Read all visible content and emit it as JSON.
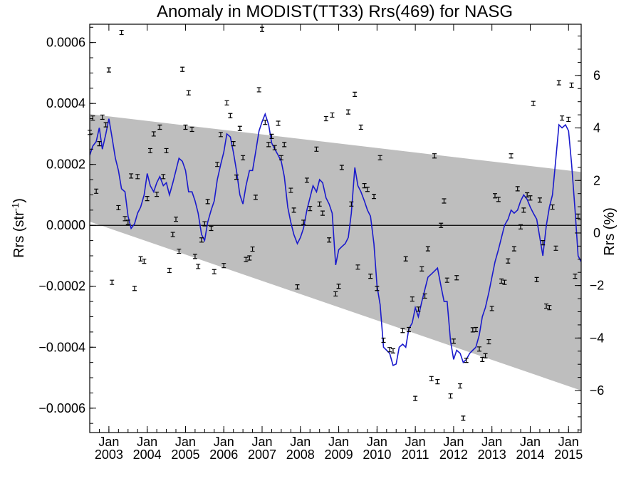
{
  "chart_data": {
    "type": "scatter",
    "title": "Anomaly in MODIST(TT33) Rrs(469) for NASG",
    "ylabel_main": "Rrs (str",
    "ylabel_sup": "-1",
    "ylabel_close": ")",
    "y2label": "Rrs (%)",
    "ylim": [
      -0.00068,
      0.00066
    ],
    "y2lim": [
      -7.6,
      7.95
    ],
    "xlim": [
      2002.5,
      2015.33
    ],
    "grid": false,
    "yticks": [
      {
        "value": -0.0006,
        "label": "−0.0006"
      },
      {
        "value": -0.0004,
        "label": "−0.0004"
      },
      {
        "value": -0.0002,
        "label": "−0.0002"
      },
      {
        "value": 0.0,
        "label": "0.0000"
      },
      {
        "value": 0.0002,
        "label": "0.0002"
      },
      {
        "value": 0.0004,
        "label": "0.0004"
      },
      {
        "value": 0.0006,
        "label": "0.0006"
      }
    ],
    "y2ticks": [
      {
        "value": -6,
        "label": "−6"
      },
      {
        "value": -4,
        "label": "−4"
      },
      {
        "value": -2,
        "label": "−2"
      },
      {
        "value": 0,
        "label": "0"
      },
      {
        "value": 2,
        "label": "2"
      },
      {
        "value": 4,
        "label": "4"
      },
      {
        "value": 6,
        "label": "6"
      }
    ],
    "xticks": [
      {
        "value": 2003,
        "month": "Jan",
        "year": "2003"
      },
      {
        "value": 2004,
        "month": "Jan",
        "year": "2004"
      },
      {
        "value": 2005,
        "month": "Jan",
        "year": "2005"
      },
      {
        "value": 2006,
        "month": "Jan",
        "year": "2006"
      },
      {
        "value": 2007,
        "month": "Jan",
        "year": "2007"
      },
      {
        "value": 2008,
        "month": "Jan",
        "year": "2008"
      },
      {
        "value": 2009,
        "month": "Jan",
        "year": "2009"
      },
      {
        "value": 2010,
        "month": "Jan",
        "year": "2010"
      },
      {
        "value": 2011,
        "month": "Jan",
        "year": "2011"
      },
      {
        "value": 2012,
        "month": "Jan",
        "year": "2012"
      },
      {
        "value": 2013,
        "month": "Jan",
        "year": "2013"
      },
      {
        "value": 2014,
        "month": "Jan",
        "year": "2014"
      },
      {
        "value": 2015,
        "month": "Jan",
        "year": "2015"
      }
    ],
    "band": {
      "start_x": 2002.5,
      "end_x": 2015.33,
      "upper_start": 0.000365,
      "upper_end": 0.000175,
      "lower_start": 1.2e-05,
      "lower_end": -0.000542,
      "color": "#bebebe"
    },
    "zero_line": 0.0,
    "colors": {
      "smoothed": "#1a1acc",
      "points": "#000000",
      "band": "#bebebe"
    },
    "points": [
      [
        2002.5,
        0.000305
      ],
      [
        2002.58,
        0.000352
      ],
      [
        2002.67,
        0.000112
      ],
      [
        2002.75,
        0.000268
      ],
      [
        2002.83,
        0.000355
      ],
      [
        2002.92,
        0.00033
      ],
      [
        2003.0,
        0.00051
      ],
      [
        2003.08,
        -0.000187
      ],
      [
        2003.25,
        5.8e-05
      ],
      [
        2003.33,
        0.000633
      ],
      [
        2003.42,
        2.2e-05
      ],
      [
        2003.5,
        1e-05
      ],
      [
        2003.58,
        0.000162
      ],
      [
        2003.67,
        -0.000207
      ],
      [
        2003.75,
        0.00016
      ],
      [
        2003.83,
        -0.00011
      ],
      [
        2003.92,
        -0.000118
      ],
      [
        2004.0,
        8.8e-05
      ],
      [
        2004.08,
        0.000245
      ],
      [
        2004.17,
        0.0003
      ],
      [
        2004.25,
        0.000102
      ],
      [
        2004.33,
        0.000322
      ],
      [
        2004.42,
        0.00016
      ],
      [
        2004.5,
        0.000245
      ],
      [
        2004.58,
        -0.000148
      ],
      [
        2004.67,
        -3e-05
      ],
      [
        2004.75,
        2e-05
      ],
      [
        2004.83,
        -8.5e-05
      ],
      [
        2004.92,
        0.000512
      ],
      [
        2005.0,
        0.000322
      ],
      [
        2005.08,
        0.000435
      ],
      [
        2005.17,
        0.000315
      ],
      [
        2005.25,
        -0.000102
      ],
      [
        2005.33,
        -0.000135
      ],
      [
        2005.42,
        -4.8e-05
      ],
      [
        2005.5,
        5e-06
      ],
      [
        2005.58,
        7.8e-05
      ],
      [
        2005.67,
        -1e-05
      ],
      [
        2005.75,
        -0.000152
      ],
      [
        2005.83,
        0.0002
      ],
      [
        2005.92,
        0.000298
      ],
      [
        2006.0,
        -0.000132
      ],
      [
        2006.08,
        0.000402
      ],
      [
        2006.17,
        0.00036
      ],
      [
        2006.25,
        0.000268
      ],
      [
        2006.33,
        0.000158
      ],
      [
        2006.42,
        0.000318
      ],
      [
        2006.5,
        0.000222
      ],
      [
        2006.58,
        -0.000112
      ],
      [
        2006.67,
        -0.000107
      ],
      [
        2006.75,
        -7.8e-05
      ],
      [
        2006.83,
        9.2e-05
      ],
      [
        2006.92,
        0.000445
      ],
      [
        2007.0,
        0.000643
      ],
      [
        2007.08,
        0.000338
      ],
      [
        2007.17,
        0.000265
      ],
      [
        2007.25,
        0.000292
      ],
      [
        2007.33,
        0.000255
      ],
      [
        2007.42,
        0.000335
      ],
      [
        2007.5,
        0.000222
      ],
      [
        2007.58,
        0.000265
      ],
      [
        2007.75,
        0.000115
      ],
      [
        2007.83,
        5e-05
      ],
      [
        2007.92,
        -0.000202
      ],
      [
        2008.08,
        1e-05
      ],
      [
        2008.17,
        0.000148
      ],
      [
        2008.25,
        5.5e-05
      ],
      [
        2008.42,
        0.00025
      ],
      [
        2008.5,
        7e-05
      ],
      [
        2008.58,
        4e-05
      ],
      [
        2008.67,
        0.00035
      ],
      [
        2008.75,
        -4.8e-05
      ],
      [
        2008.83,
        0.000362
      ],
      [
        2008.92,
        -0.000225
      ],
      [
        2009.0,
        -0.0002
      ],
      [
        2009.08,
        0.00019
      ],
      [
        2009.25,
        0.000372
      ],
      [
        2009.33,
        7e-05
      ],
      [
        2009.42,
        0.00043
      ],
      [
        2009.5,
        -0.000137
      ],
      [
        2009.58,
        0.000322
      ],
      [
        2009.67,
        0.00013
      ],
      [
        2009.75,
        0.000118
      ],
      [
        2009.83,
        -0.000167
      ],
      [
        2009.92,
        9.5e-05
      ],
      [
        2010.0,
        -0.000207
      ],
      [
        2010.08,
        0.000222
      ],
      [
        2010.17,
        -0.000377
      ],
      [
        2010.33,
        -0.000408
      ],
      [
        2010.42,
        -0.000412
      ],
      [
        2010.67,
        -0.000345
      ],
      [
        2010.75,
        -0.00011
      ],
      [
        2010.83,
        -0.000342
      ],
      [
        2010.92,
        -0.000242
      ],
      [
        2011.0,
        -0.000568
      ],
      [
        2011.08,
        -0.000275
      ],
      [
        2011.17,
        -0.000143
      ],
      [
        2011.25,
        -0.000232
      ],
      [
        2011.33,
        -7.7e-05
      ],
      [
        2011.42,
        -0.000503
      ],
      [
        2011.5,
        0.000228
      ],
      [
        2011.58,
        -0.000513
      ],
      [
        2011.67,
        0.0
      ],
      [
        2011.75,
        8e-05
      ],
      [
        2011.83,
        -0.00018
      ],
      [
        2011.92,
        -0.00056
      ],
      [
        2012.0,
        -0.00038
      ],
      [
        2012.08,
        -0.000172
      ],
      [
        2012.17,
        -0.000527
      ],
      [
        2012.25,
        -0.000633
      ],
      [
        2012.33,
        -0.000443
      ],
      [
        2012.5,
        -0.000343
      ],
      [
        2012.58,
        -0.000342
      ],
      [
        2012.67,
        -0.000406
      ],
      [
        2012.75,
        -0.00044
      ],
      [
        2012.83,
        -0.000428
      ],
      [
        2012.92,
        -0.000382
      ],
      [
        2013.0,
        -0.000273
      ],
      [
        2013.08,
        9.7e-05
      ],
      [
        2013.17,
        8.5e-05
      ],
      [
        2013.25,
        -0.000183
      ],
      [
        2013.33,
        -0.000187
      ],
      [
        2013.42,
        -0.000117
      ],
      [
        2013.5,
        0.000228
      ],
      [
        2013.58,
        -7.7e-05
      ],
      [
        2013.67,
        0.00012
      ],
      [
        2013.75,
        -5e-06
      ],
      [
        2013.83,
        5e-05
      ],
      [
        2013.92,
        0.0001
      ],
      [
        2014.0,
        9e-05
      ],
      [
        2014.08,
        0.0004
      ],
      [
        2014.17,
        -0.000178
      ],
      [
        2014.25,
        8.3e-05
      ],
      [
        2014.33,
        -5.7e-05
      ],
      [
        2014.42,
        -0.000265
      ],
      [
        2014.5,
        -0.00027
      ],
      [
        2014.58,
        6e-05
      ],
      [
        2014.67,
        -7.5e-05
      ],
      [
        2014.75,
        0.000468
      ],
      [
        2014.83,
        0.000352
      ],
      [
        2015.0,
        0.000348
      ],
      [
        2015.08,
        0.00046
      ],
      [
        2015.17,
        -0.000167
      ],
      [
        2015.25,
        3e-05
      ]
    ],
    "smoothed": [
      [
        2002.5,
        0.00023
      ],
      [
        2002.58,
        0.00026
      ],
      [
        2002.67,
        0.000275
      ],
      [
        2002.75,
        0.00032
      ],
      [
        2002.83,
        0.00025
      ],
      [
        2002.92,
        0.0003
      ],
      [
        2003.0,
        0.00035
      ],
      [
        2003.08,
        0.00029
      ],
      [
        2003.17,
        0.00022
      ],
      [
        2003.25,
        0.00018
      ],
      [
        2003.33,
        0.00012
      ],
      [
        2003.42,
        0.00011
      ],
      [
        2003.5,
        3e-05
      ],
      [
        2003.58,
        -1e-05
      ],
      [
        2003.67,
        5e-06
      ],
      [
        2003.75,
        4e-05
      ],
      [
        2003.83,
        6e-05
      ],
      [
        2003.92,
        0.0001
      ],
      [
        2004.0,
        0.00017
      ],
      [
        2004.08,
        0.00013
      ],
      [
        2004.17,
        0.00011
      ],
      [
        2004.25,
        0.00014
      ],
      [
        2004.33,
        0.00016
      ],
      [
        2004.42,
        0.00013
      ],
      [
        2004.5,
        0.00014
      ],
      [
        2004.58,
        0.0001
      ],
      [
        2004.67,
        0.00014
      ],
      [
        2004.75,
        0.00018
      ],
      [
        2004.83,
        0.00022
      ],
      [
        2004.92,
        0.00021
      ],
      [
        2005.0,
        0.00018
      ],
      [
        2005.08,
        0.00011
      ],
      [
        2005.17,
        0.00011
      ],
      [
        2005.25,
        8e-05
      ],
      [
        2005.33,
        4e-05
      ],
      [
        2005.42,
        -3e-05
      ],
      [
        2005.5,
        -5e-05
      ],
      [
        2005.58,
        1e-05
      ],
      [
        2005.67,
        5e-05
      ],
      [
        2005.75,
        8e-05
      ],
      [
        2005.83,
        0.00015
      ],
      [
        2005.92,
        0.0002
      ],
      [
        2006.0,
        0.00024
      ],
      [
        2006.08,
        0.0003
      ],
      [
        2006.17,
        0.00029
      ],
      [
        2006.25,
        0.00024
      ],
      [
        2006.33,
        0.00018
      ],
      [
        2006.42,
        0.0001
      ],
      [
        2006.5,
        7e-05
      ],
      [
        2006.58,
        0.00013
      ],
      [
        2006.67,
        0.00018
      ],
      [
        2006.75,
        0.00018
      ],
      [
        2006.83,
        0.00024
      ],
      [
        2006.92,
        0.00031
      ],
      [
        2007.0,
        0.00034
      ],
      [
        2007.08,
        0.000365
      ],
      [
        2007.17,
        0.00033
      ],
      [
        2007.25,
        0.00027
      ],
      [
        2007.33,
        0.00025
      ],
      [
        2007.42,
        0.00023
      ],
      [
        2007.5,
        0.00021
      ],
      [
        2007.58,
        0.00016
      ],
      [
        2007.67,
        6e-05
      ],
      [
        2007.75,
        1e-05
      ],
      [
        2007.83,
        -3e-05
      ],
      [
        2007.92,
        -6e-05
      ],
      [
        2008.0,
        -4e-05
      ],
      [
        2008.08,
        -1e-05
      ],
      [
        2008.17,
        5e-05
      ],
      [
        2008.25,
        9e-05
      ],
      [
        2008.33,
        0.00013
      ],
      [
        2008.42,
        0.00011
      ],
      [
        2008.5,
        0.00015
      ],
      [
        2008.58,
        0.00014
      ],
      [
        2008.67,
        9e-05
      ],
      [
        2008.75,
        7e-05
      ],
      [
        2008.83,
        4e-05
      ],
      [
        2008.92,
        -0.00013
      ],
      [
        2009.0,
        -8e-05
      ],
      [
        2009.08,
        -7e-05
      ],
      [
        2009.17,
        -6e-05
      ],
      [
        2009.25,
        -4e-05
      ],
      [
        2009.33,
        4e-05
      ],
      [
        2009.42,
        0.00019
      ],
      [
        2009.5,
        0.00013
      ],
      [
        2009.58,
        0.00011
      ],
      [
        2009.67,
        8e-05
      ],
      [
        2009.75,
        5e-05
      ],
      [
        2009.83,
        3e-05
      ],
      [
        2009.92,
        -6e-05
      ],
      [
        2010.0,
        -0.0002
      ],
      [
        2010.08,
        -0.00026
      ],
      [
        2010.17,
        -0.0004
      ],
      [
        2010.25,
        -0.00041
      ],
      [
        2010.33,
        -0.00042
      ],
      [
        2010.42,
        -0.00046
      ],
      [
        2010.5,
        -0.000455
      ],
      [
        2010.58,
        -0.0004
      ],
      [
        2010.67,
        -0.00039
      ],
      [
        2010.75,
        -0.0004
      ],
      [
        2010.83,
        -0.00034
      ],
      [
        2010.92,
        -0.00032
      ],
      [
        2011.0,
        -0.00027
      ],
      [
        2011.08,
        -0.0003
      ],
      [
        2011.17,
        -0.00025
      ],
      [
        2011.25,
        -0.00021
      ],
      [
        2011.33,
        -0.00017
      ],
      [
        2011.42,
        -0.00016
      ],
      [
        2011.5,
        -0.00015
      ],
      [
        2011.58,
        -0.00014
      ],
      [
        2011.67,
        -0.0002
      ],
      [
        2011.75,
        -0.00025
      ],
      [
        2011.83,
        -0.00025
      ],
      [
        2011.92,
        -0.00038
      ],
      [
        2012.0,
        -0.00044
      ],
      [
        2012.08,
        -0.00041
      ],
      [
        2012.17,
        -0.00042
      ],
      [
        2012.25,
        -0.00045
      ],
      [
        2012.33,
        -0.00044
      ],
      [
        2012.42,
        -0.00042
      ],
      [
        2012.5,
        -0.00041
      ],
      [
        2012.58,
        -0.0004
      ],
      [
        2012.67,
        -0.00036
      ],
      [
        2012.75,
        -0.0003
      ],
      [
        2012.83,
        -0.00027
      ],
      [
        2012.92,
        -0.00022
      ],
      [
        2013.0,
        -0.00017
      ],
      [
        2013.08,
        -0.00012
      ],
      [
        2013.17,
        -8e-05
      ],
      [
        2013.25,
        -4e-05
      ],
      [
        2013.33,
        0.0
      ],
      [
        2013.42,
        2e-05
      ],
      [
        2013.5,
        5e-05
      ],
      [
        2013.58,
        4e-05
      ],
      [
        2013.67,
        5e-05
      ],
      [
        2013.75,
        8e-05
      ],
      [
        2013.83,
        0.0001
      ],
      [
        2013.92,
        8.5e-05
      ],
      [
        2014.0,
        6e-05
      ],
      [
        2014.08,
        4e-05
      ],
      [
        2014.17,
        2e-05
      ],
      [
        2014.25,
        -4e-05
      ],
      [
        2014.33,
        -0.0001
      ],
      [
        2014.42,
        0.0
      ],
      [
        2014.5,
        6e-05
      ],
      [
        2014.58,
        0.0001
      ],
      [
        2014.67,
        0.00022
      ],
      [
        2014.75,
        0.00033
      ],
      [
        2014.83,
        0.00032
      ],
      [
        2014.92,
        0.00033
      ],
      [
        2015.0,
        0.00031
      ],
      [
        2015.08,
        0.0002
      ],
      [
        2015.17,
        5e-05
      ],
      [
        2015.25,
        -0.0001
      ],
      [
        2015.33,
        -0.00012
      ]
    ]
  }
}
